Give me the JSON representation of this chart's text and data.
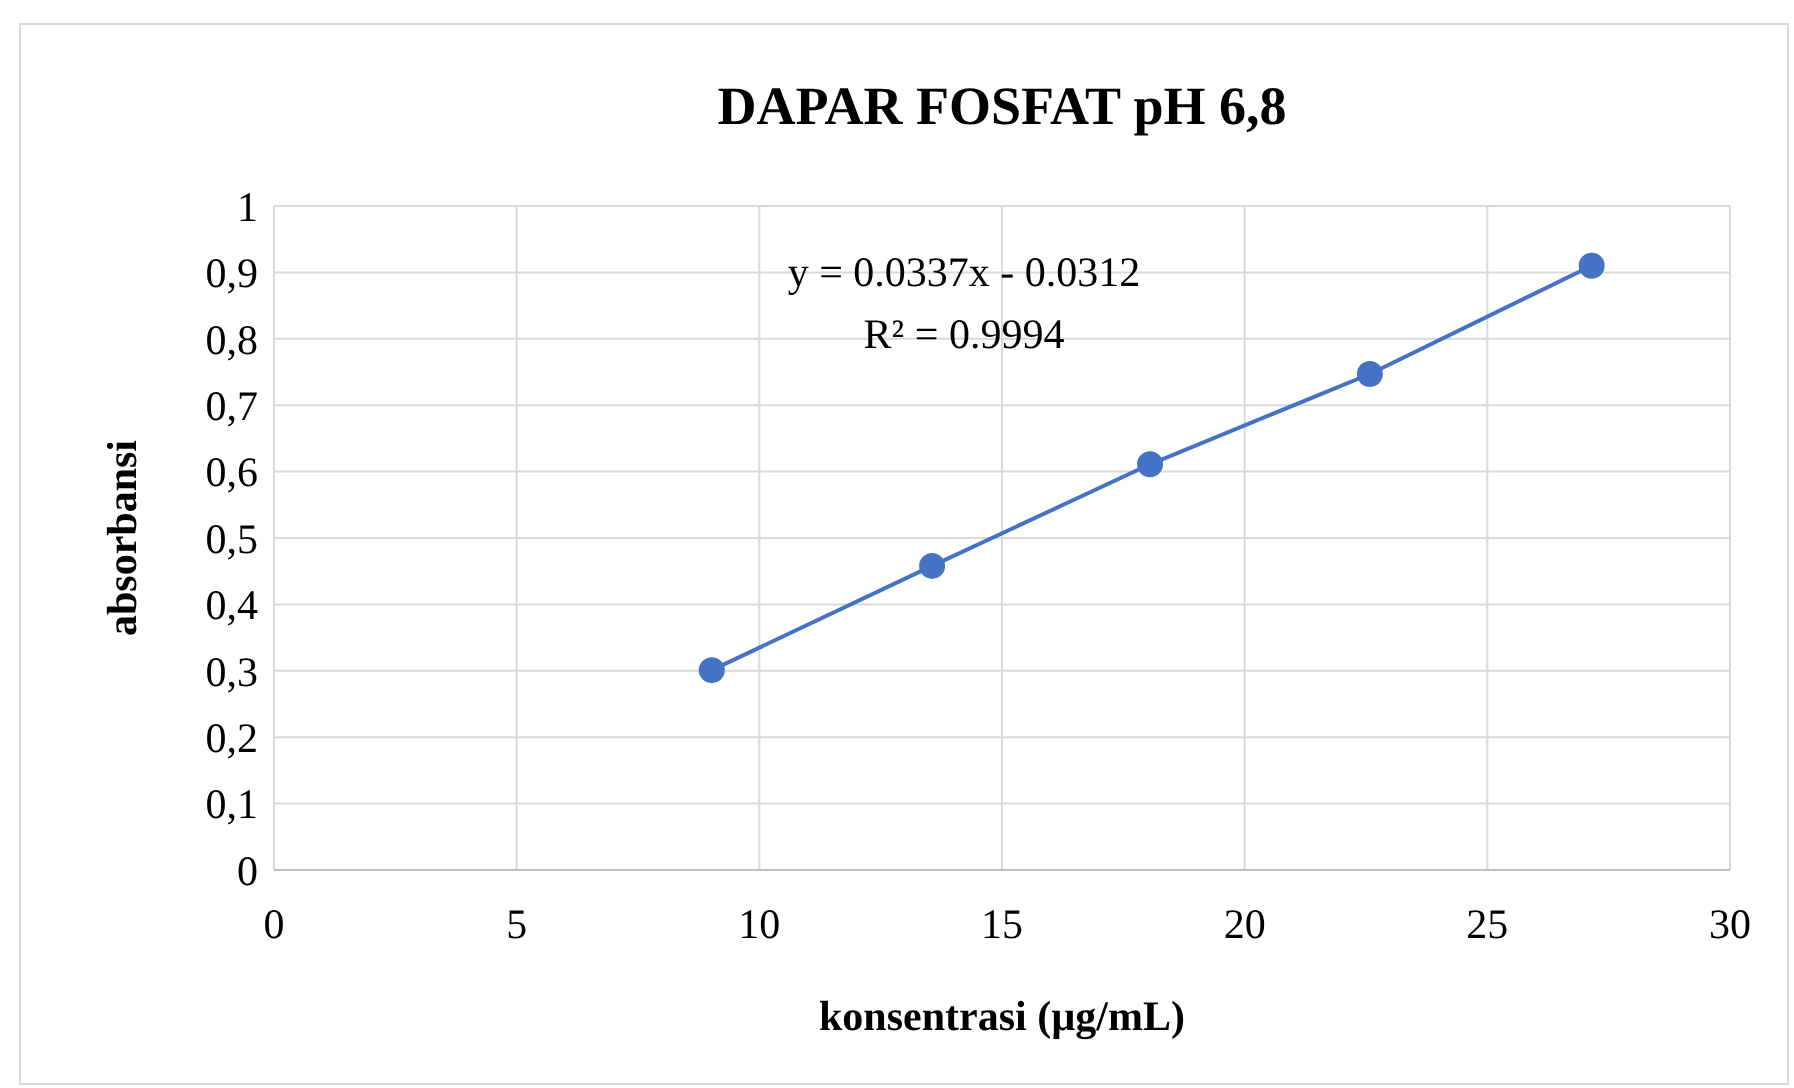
{
  "chart_data": {
    "type": "line",
    "title": "DAPAR FOSFAT pH 6,8",
    "xlabel": "konsentrasi (µg/mL)",
    "ylabel": "absorbansi",
    "x": [
      9.02,
      13.56,
      18.05,
      22.58,
      27.15
    ],
    "series": [
      {
        "color": "#4472c4",
        "values": [
          0.301,
          0.458,
          0.611,
          0.747,
          0.91
        ]
      }
    ],
    "marker": "circle",
    "line_style": "solid",
    "grid": true,
    "xlim": [
      0,
      30
    ],
    "xticks": [
      0,
      5,
      10,
      15,
      20,
      25,
      30
    ],
    "ylim": [
      0,
      1
    ],
    "yticks": [
      0,
      {
        "value": 0.1,
        "label": "0,1"
      },
      {
        "value": 0.2,
        "label": "0,2"
      },
      {
        "value": 0.3,
        "label": "0,3"
      },
      {
        "value": 0.4,
        "label": "0,4"
      },
      {
        "value": 0.5,
        "label": "0,5"
      },
      {
        "value": 0.6,
        "label": "0,6"
      },
      {
        "value": 0.7,
        "label": "0,7"
      },
      {
        "value": 0.8,
        "label": "0,8"
      },
      {
        "value": 0.9,
        "label": "0,9"
      },
      1
    ],
    "annotations": [
      "y = 0.0337x - 0.0312",
      "R² = 0.9994"
    ]
  }
}
